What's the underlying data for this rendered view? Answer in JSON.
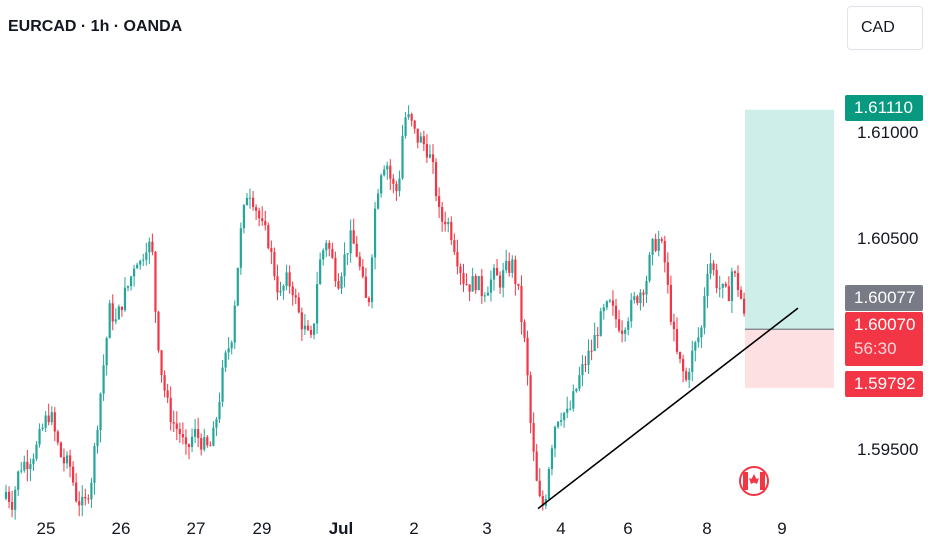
{
  "header": {
    "title": "EURCAD · 1h · OANDA",
    "currency": "CAD"
  },
  "colors": {
    "up": "#26a69a",
    "down": "#f23645",
    "target_zone": "#cdeee9",
    "stop_zone": "#fde0e2",
    "last_price": "#787b86"
  },
  "chart_data": {
    "type": "candlestick",
    "symbol": "EURCAD",
    "timeframe": "1h",
    "source": "OANDA",
    "x_tick_labels": [
      "25",
      "26",
      "27",
      "29",
      "Jul",
      "2",
      "3",
      "4",
      "6",
      "8",
      "9"
    ],
    "y_tick_labels": [
      "1.61000",
      "1.60500",
      "1.59500"
    ],
    "ylim": [
      1.5916,
      1.6124
    ],
    "close_path": [
      [
        0,
        1.592
      ],
      [
        6,
        1.593
      ],
      [
        12,
        1.5925
      ],
      [
        20,
        1.5942
      ],
      [
        28,
        1.5945
      ],
      [
        36,
        1.595
      ],
      [
        44,
        1.5962
      ],
      [
        50,
        1.5968
      ],
      [
        56,
        1.5955
      ],
      [
        62,
        1.5945
      ],
      [
        70,
        1.5942
      ],
      [
        76,
        1.5928
      ],
      [
        84,
        1.5922
      ],
      [
        92,
        1.5938
      ],
      [
        98,
        1.5966
      ],
      [
        104,
        1.5992
      ],
      [
        110,
        1.6017
      ],
      [
        116,
        1.601
      ],
      [
        122,
        1.602
      ],
      [
        130,
        1.603
      ],
      [
        136,
        1.6042
      ],
      [
        140,
        1.6038
      ],
      [
        146,
        1.6048
      ],
      [
        152,
        1.6045
      ],
      [
        156,
        1.6012
      ],
      [
        162,
        1.5985
      ],
      [
        168,
        1.597
      ],
      [
        174,
        1.5962
      ],
      [
        180,
        1.5958
      ],
      [
        186,
        1.5948
      ],
      [
        194,
        1.5958
      ],
      [
        200,
        1.5955
      ],
      [
        206,
        1.595
      ],
      [
        212,
        1.5952
      ],
      [
        218,
        1.597
      ],
      [
        224,
        1.599
      ],
      [
        232,
        1.6005
      ],
      [
        240,
        1.605
      ],
      [
        248,
        1.6075
      ],
      [
        254,
        1.6068
      ],
      [
        262,
        1.6055
      ],
      [
        268,
        1.605
      ],
      [
        274,
        1.6035
      ],
      [
        280,
        1.6022
      ],
      [
        286,
        1.603
      ],
      [
        292,
        1.6028
      ],
      [
        298,
        1.6015
      ],
      [
        306,
        1.6005
      ],
      [
        312,
        1.6
      ],
      [
        318,
        1.6035
      ],
      [
        326,
        1.605
      ],
      [
        332,
        1.604
      ],
      [
        338,
        1.603
      ],
      [
        344,
        1.604
      ],
      [
        350,
        1.605
      ],
      [
        356,
        1.6045
      ],
      [
        362,
        1.603
      ],
      [
        368,
        1.6015
      ],
      [
        374,
        1.606
      ],
      [
        380,
        1.6082
      ],
      [
        386,
        1.6088
      ],
      [
        392,
        1.6075
      ],
      [
        398,
        1.6072
      ],
      [
        404,
        1.6108
      ],
      [
        410,
        1.6106
      ],
      [
        416,
        1.6098
      ],
      [
        422,
        1.6096
      ],
      [
        428,
        1.6092
      ],
      [
        434,
        1.608
      ],
      [
        440,
        1.6058
      ],
      [
        446,
        1.606
      ],
      [
        452,
        1.6052
      ],
      [
        458,
        1.604
      ],
      [
        464,
        1.603
      ],
      [
        470,
        1.6028
      ],
      [
        476,
        1.603
      ],
      [
        482,
        1.6025
      ],
      [
        488,
        1.6028
      ],
      [
        494,
        1.6032
      ],
      [
        500,
        1.603
      ],
      [
        506,
        1.6035
      ],
      [
        512,
        1.6038
      ],
      [
        518,
        1.6025
      ],
      [
        522,
        1.601
      ],
      [
        526,
        1.5995
      ],
      [
        530,
        1.5965
      ],
      [
        534,
        1.5945
      ],
      [
        538,
        1.5928
      ],
      [
        542,
        1.5922
      ],
      [
        546,
        1.593
      ],
      [
        550,
        1.5948
      ],
      [
        556,
        1.5965
      ],
      [
        562,
        1.5968
      ],
      [
        568,
        1.5966
      ],
      [
        574,
        1.5975
      ],
      [
        580,
        1.5985
      ],
      [
        586,
        1.5992
      ],
      [
        592,
        1.5998
      ],
      [
        598,
        1.6008
      ],
      [
        604,
        1.6015
      ],
      [
        610,
        1.6018
      ],
      [
        616,
        1.6012
      ],
      [
        622,
        1.6008
      ],
      [
        628,
        1.6014
      ],
      [
        634,
        1.602
      ],
      [
        640,
        1.6025
      ],
      [
        646,
        1.603
      ],
      [
        652,
        1.6045
      ],
      [
        658,
        1.605
      ],
      [
        664,
        1.6042
      ],
      [
        668,
        1.6025
      ],
      [
        672,
        1.601
      ],
      [
        676,
        1.5996
      ],
      [
        682,
        1.5988
      ],
      [
        686,
        1.5982
      ],
      [
        690,
        1.5992
      ],
      [
        696,
        1.6
      ],
      [
        702,
        1.6008
      ],
      [
        706,
        1.6035
      ],
      [
        710,
        1.604
      ],
      [
        716,
        1.603
      ],
      [
        722,
        1.6025
      ],
      [
        728,
        1.6022
      ],
      [
        732,
        1.6035
      ],
      [
        736,
        1.603
      ],
      [
        740,
        1.6025
      ],
      [
        743,
        1.6015
      ],
      [
        746,
        1.6007
      ]
    ],
    "annotations": {
      "trendline": {
        "from": [
          538,
          1.5922
        ],
        "to": [
          798,
          1.6017
        ]
      },
      "position": {
        "entry": 1.6007,
        "target": 1.6111,
        "stop": 1.59792
      },
      "flag_icon": "canada-flag-icon"
    },
    "price_labels": {
      "target": "1.61110",
      "last_close": "1.60077",
      "current": "1.60070",
      "countdown": "56:30",
      "stop": "1.59792"
    }
  }
}
